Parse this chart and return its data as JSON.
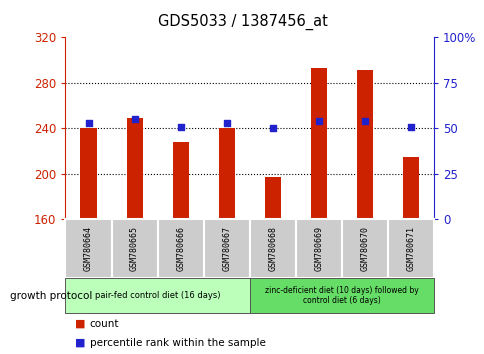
{
  "title": "GDS5033 / 1387456_at",
  "categories": [
    "GSM780664",
    "GSM780665",
    "GSM780666",
    "GSM780667",
    "GSM780668",
    "GSM780669",
    "GSM780670",
    "GSM780671"
  ],
  "bar_values": [
    240,
    249,
    228,
    240,
    197,
    293,
    291,
    215
  ],
  "scatter_values": [
    53,
    55,
    51,
    53,
    50,
    54,
    54,
    51
  ],
  "bar_bottom": 160,
  "ylim": [
    160,
    320
  ],
  "yticks": [
    160,
    200,
    240,
    280,
    320
  ],
  "y2lim": [
    0,
    100
  ],
  "y2ticks": [
    0,
    25,
    50,
    75,
    100
  ],
  "y2ticklabels": [
    "0",
    "25",
    "50",
    "75",
    "100%"
  ],
  "bar_color": "#cc2200",
  "scatter_color": "#2222cc",
  "left_axis_color": "#cc2200",
  "right_axis_color": "#2222cc",
  "title_color": "#000000",
  "group1_label": "pair-fed control diet (16 days)",
  "group2_label": "zinc-deficient diet (10 days) followed by\ncontrol diet (6 days)",
  "group1_indices": [
    0,
    1,
    2,
    3
  ],
  "group2_indices": [
    4,
    5,
    6,
    7
  ],
  "group1_color": "#bbffbb",
  "group2_color": "#66dd66",
  "protocol_label": "growth protocol",
  "legend_bar_label": "count",
  "legend_scatter_label": "percentile rank within the sample",
  "plot_bg_color": "#ffffff",
  "sample_box_color": "#cccccc",
  "bar_width": 0.35
}
